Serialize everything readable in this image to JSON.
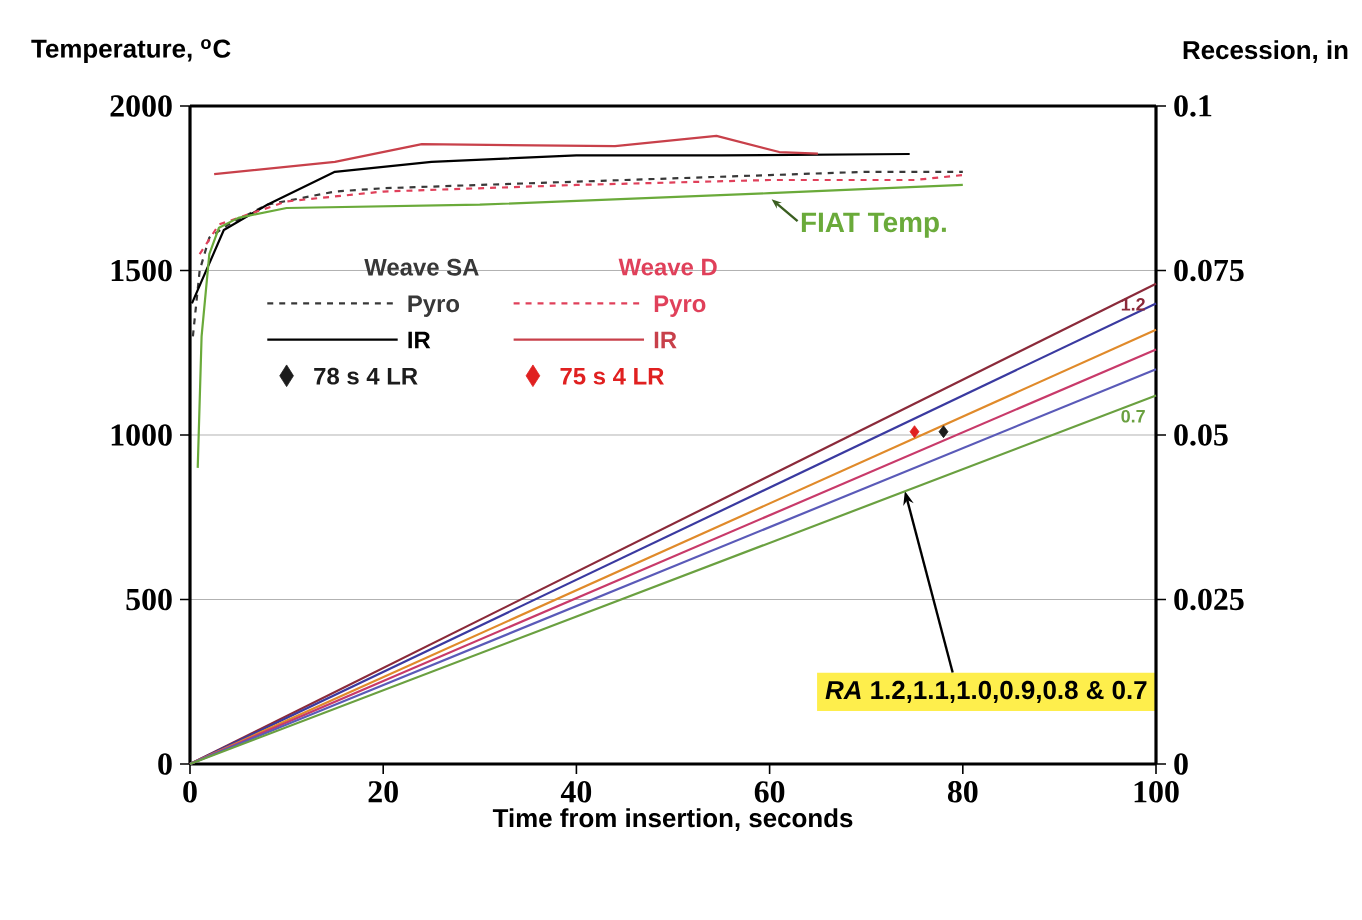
{
  "chart_data": {
    "type": "line",
    "xlabel": "Time from insertion, seconds",
    "ylabel": "Temperature, $^{o}$C",
    "y2label": "Recession, in",
    "xlim": [
      0,
      100
    ],
    "xticks": [
      0,
      20,
      40,
      60,
      80,
      100
    ],
    "ylim": [
      0,
      2000
    ],
    "yticks": [
      0,
      500,
      1000,
      1500,
      2000
    ],
    "y2lim": [
      0,
      0.1
    ],
    "y2ticks": [
      0,
      0.025,
      0.05,
      0.075,
      0.1
    ],
    "grid": "y",
    "legend": "top left",
    "annotations": [
      "Weave SA",
      "Weave D",
      {
        "text": "*RA* 1.2,1.1,1.0,0.9,0.8 & 0.7",
        "x": 74,
        "y": 830
      }
    ],
    "series": [
      {
        "name": "Pyro",
        "line_style": "dashed",
        "color": "#383838",
        "x": [
          0.3,
          1,
          2,
          4,
          8,
          15,
          20,
          30,
          40,
          50,
          60,
          70,
          80
        ],
        "values": [
          1300,
          1500,
          1600,
          1640,
          1700,
          1740,
          1750,
          1760,
          1770,
          1780,
          1790,
          1800,
          1800
        ]
      },
      {
        "name": "IR",
        "line_style": "solid",
        "color": "#000000",
        "x": [
          0.2,
          3.5,
          8,
          15,
          25,
          40,
          55,
          74.5
        ],
        "values": [
          1400,
          1623,
          1700,
          1800,
          1830,
          1850,
          1850,
          1854
        ]
      },
      {
        "name": "78 s 4 LR",
        "type": "scatter",
        "marker": "diamond",
        "axis": "y2",
        "color": "#1c1c1c",
        "x": [
          78
        ],
        "values": [
          0.0505
        ]
      },
      {
        "name": "Pyro",
        "line_style": "dashed",
        "color": "#e0405a",
        "x": [
          1,
          3,
          10,
          20,
          40,
          60,
          75,
          80
        ],
        "values": [
          1550,
          1640,
          1710,
          1740,
          1760,
          1775,
          1775,
          1790
        ]
      },
      {
        "name": "IR",
        "line_style": "solid",
        "color": "#c8404a",
        "x": [
          2.5,
          15,
          24,
          44,
          54.5,
          61,
          65
        ],
        "values": [
          1793,
          1830,
          1884,
          1878,
          1909,
          1860,
          1855
        ]
      },
      {
        "name": "75 s 4 LR",
        "type": "scatter",
        "marker": "diamond",
        "axis": "y2",
        "color": "#e02020",
        "x": [
          75
        ],
        "values": [
          0.0505
        ]
      },
      {
        "name": "FIAT Temp.",
        "line_style": "solid",
        "color": "#6aaa3a",
        "x": [
          0.8,
          1.2,
          2,
          3,
          5,
          10,
          30,
          60,
          80
        ],
        "values": [
          900,
          1300,
          1550,
          1630,
          1660,
          1690,
          1700,
          1735,
          1760
        ]
      },
      {
        "name": "1.2",
        "axis": "y2",
        "color": "#8b2a3a",
        "x": [
          0,
          100
        ],
        "values": [
          0,
          0.073
        ]
      },
      {
        "name": null,
        "axis": "y2",
        "color": "#3a3aa0",
        "x": [
          0,
          100
        ],
        "values": [
          0,
          0.07
        ]
      },
      {
        "name": null,
        "axis": "y2",
        "color": "#e08a2a",
        "x": [
          0,
          100
        ],
        "values": [
          0,
          0.066
        ]
      },
      {
        "name": null,
        "axis": "y2",
        "color": "#c83a6a",
        "x": [
          0,
          100
        ],
        "values": [
          0,
          0.063
        ]
      },
      {
        "name": null,
        "axis": "y2",
        "color": "#5a5ab8",
        "x": [
          0,
          100
        ],
        "values": [
          0,
          0.06
        ]
      },
      {
        "name": "0.7",
        "axis": "y2",
        "color": "#6aa040",
        "x": [
          0,
          100
        ],
        "values": [
          0,
          0.056
        ]
      }
    ]
  }
}
